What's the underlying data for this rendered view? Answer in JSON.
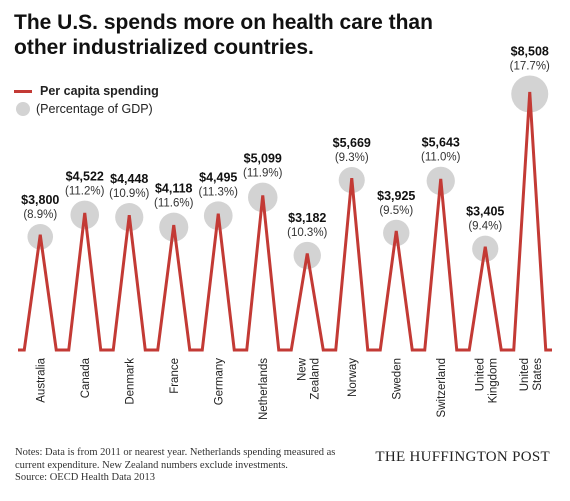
{
  "title_line1": "The U.S. spends more on health care than",
  "title_line2": "other industrialized countries.",
  "legend": {
    "spending": "Per capita spending",
    "gdp": "(Percentage of GDP)"
  },
  "colors": {
    "line": "#c33a35",
    "circle": "#d3d3d3"
  },
  "chart_data": {
    "type": "line",
    "series": [
      {
        "name": "Per capita spending",
        "values": [
          3800,
          4522,
          4448,
          4118,
          4495,
          5099,
          3182,
          5669,
          3925,
          5643,
          3405,
          8508
        ]
      },
      {
        "name": "(Percentage of GDP)",
        "values": [
          8.9,
          11.2,
          10.9,
          11.6,
          11.3,
          11.9,
          10.3,
          9.3,
          9.5,
          11.0,
          9.4,
          17.7
        ]
      }
    ],
    "categories": [
      [
        "Australia"
      ],
      [
        "Canada"
      ],
      [
        "Denmark"
      ],
      [
        "France"
      ],
      [
        "Germany"
      ],
      [
        "Netherlands"
      ],
      [
        "New",
        "Zealand"
      ],
      [
        "Norway"
      ],
      [
        "Sweden"
      ],
      [
        "Switzerland"
      ],
      [
        "United",
        "Kingdom"
      ],
      [
        "United",
        "States"
      ]
    ],
    "value_labels": [
      "$3,800",
      "$4,522",
      "$4,448",
      "$4,118",
      "$4,495",
      "$5,099",
      "$3,182",
      "$5,669",
      "$3,925",
      "$5,643",
      "$3,405",
      "$8,508"
    ],
    "pct_labels": [
      "(8.9%)",
      "(11.2%)",
      "(10.9%)",
      "(11.6%)",
      "(11.3%)",
      "(11.9%)",
      "(10.3%)",
      "(9.3%)",
      "(9.5%)",
      "(11.0%)",
      "(9.4%)",
      "(17.7%)"
    ],
    "ylim": [
      0,
      8508
    ]
  },
  "notes": {
    "line1": "Notes: Data is from 2011 or nearest year. Netherlands spending measured as",
    "line2": "current expenditure. New Zealand numbers exclude investments.",
    "line3": "Source: OECD Health Data 2013"
  },
  "brand": "THE HUFFINGTON POST"
}
